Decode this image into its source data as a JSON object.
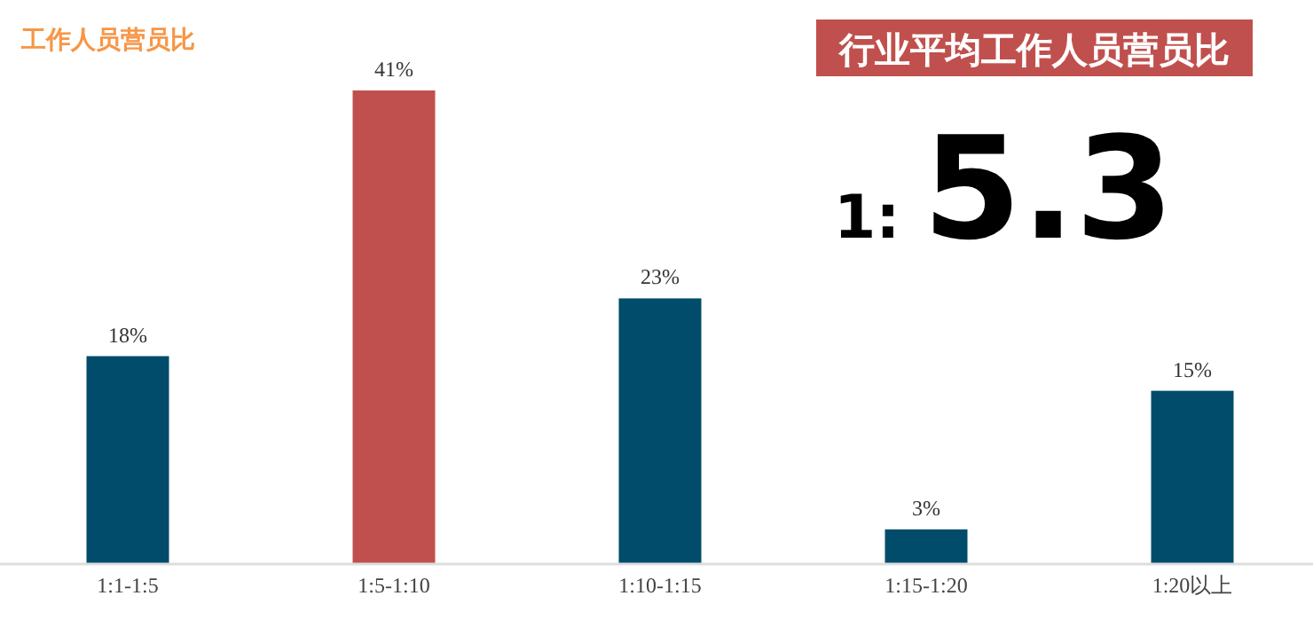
{
  "chart_data": {
    "type": "bar",
    "title": "工作人员营员比",
    "categories": [
      "1:1-1:5",
      "1:5-1:10",
      "1:10-1:15",
      "1:15-1:20",
      "1:20以上"
    ],
    "values": [
      18,
      41,
      23,
      3,
      15
    ],
    "value_labels": [
      "18%",
      "41%",
      "23%",
      "3%",
      "15%"
    ],
    "colors": [
      "#004c6a",
      "#c0504d",
      "#004c6a",
      "#004c6a",
      "#004c6a"
    ],
    "annotations": [
      "行业平均工作人员营员比",
      "1:",
      "5.3"
    ]
  }
}
